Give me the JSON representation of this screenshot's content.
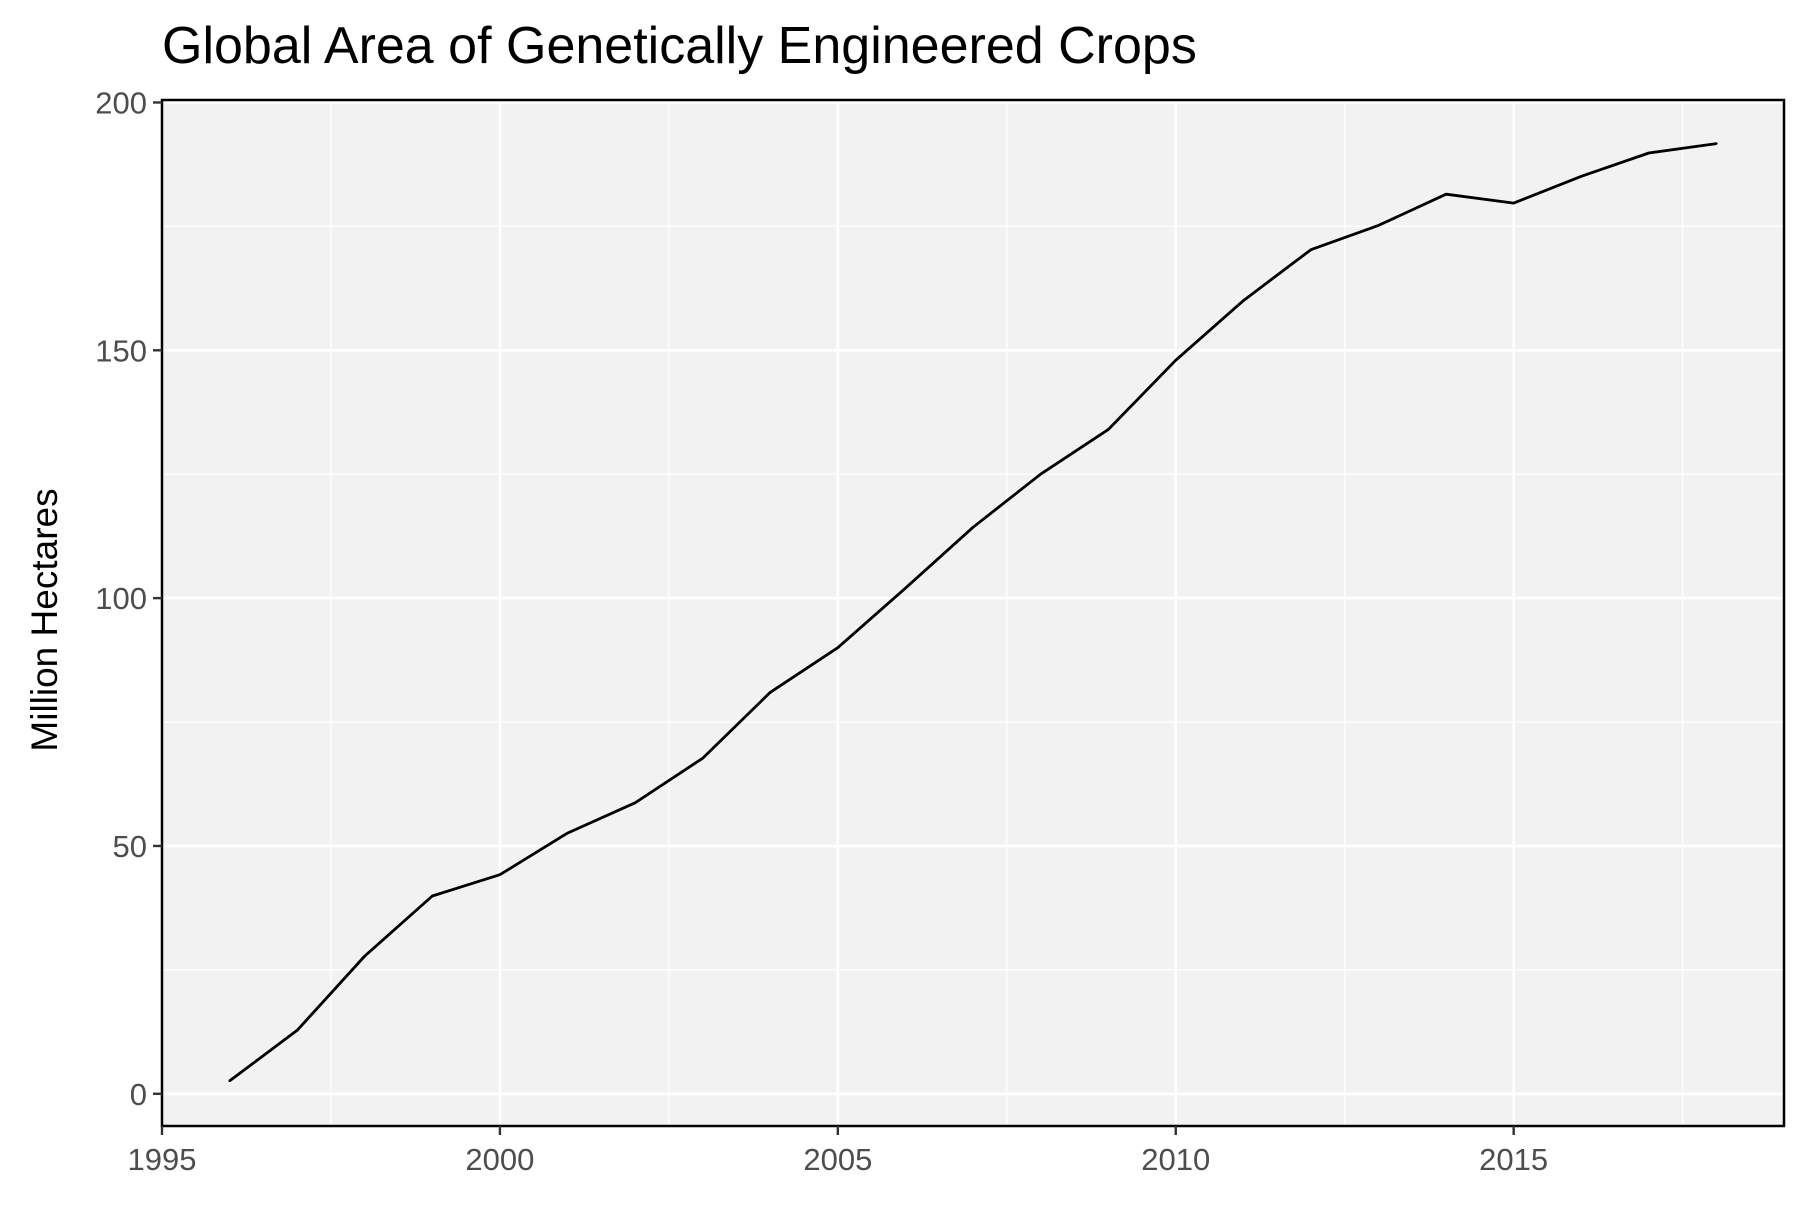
{
  "chart_data": {
    "type": "line",
    "title": "Global Area of Genetically Engineered Crops",
    "xlabel": "",
    "ylabel": "Million Hectares",
    "xlim": [
      1995,
      2019
    ],
    "ylim": [
      -6.5,
      200.5
    ],
    "x_ticks": [
      1995,
      2000,
      2005,
      2010,
      2015
    ],
    "y_ticks": [
      0,
      50,
      100,
      150,
      200
    ],
    "x_minor_ticks": [
      1997.5,
      2002.5,
      2007.5,
      2012.5,
      2017.5
    ],
    "y_minor_ticks": [
      25,
      75,
      125,
      175
    ],
    "grid": true,
    "legend": "none",
    "colors": {
      "panel_background": "#f2f2f2",
      "grid": "#ffffff",
      "line": "#000000",
      "border": "#000000",
      "tick_label": "#4d4d4d"
    },
    "series": [
      {
        "x": [
          1996,
          1997,
          1998,
          1999,
          2000,
          2001,
          2002,
          2003,
          2004,
          2005,
          2006,
          2007,
          2008,
          2009,
          2010,
          2011,
          2012,
          2013,
          2014,
          2015,
          2016,
          2017,
          2018
        ],
        "values": [
          2.6,
          12.8,
          27.8,
          39.9,
          44.2,
          52.6,
          58.7,
          67.7,
          81.0,
          90.0,
          102.0,
          114.3,
          125.0,
          134.0,
          148.0,
          160.0,
          170.3,
          175.2,
          181.5,
          179.7,
          185.1,
          189.8,
          191.7
        ]
      }
    ]
  }
}
